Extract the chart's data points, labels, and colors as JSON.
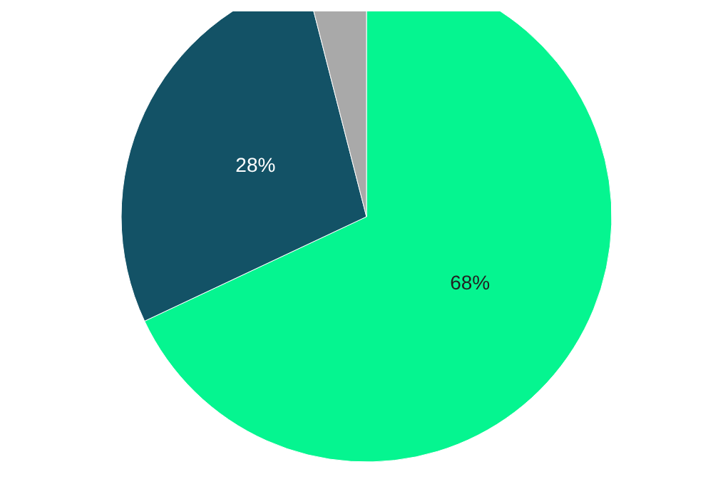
{
  "chart_data": {
    "type": "pie",
    "categories": [
      null,
      null,
      null
    ],
    "values": [
      68,
      28,
      4
    ],
    "colors": [
      "#05f590",
      "#135266",
      "#a9a9a9"
    ],
    "value_labels": [
      "68%",
      "28%",
      null
    ]
  }
}
